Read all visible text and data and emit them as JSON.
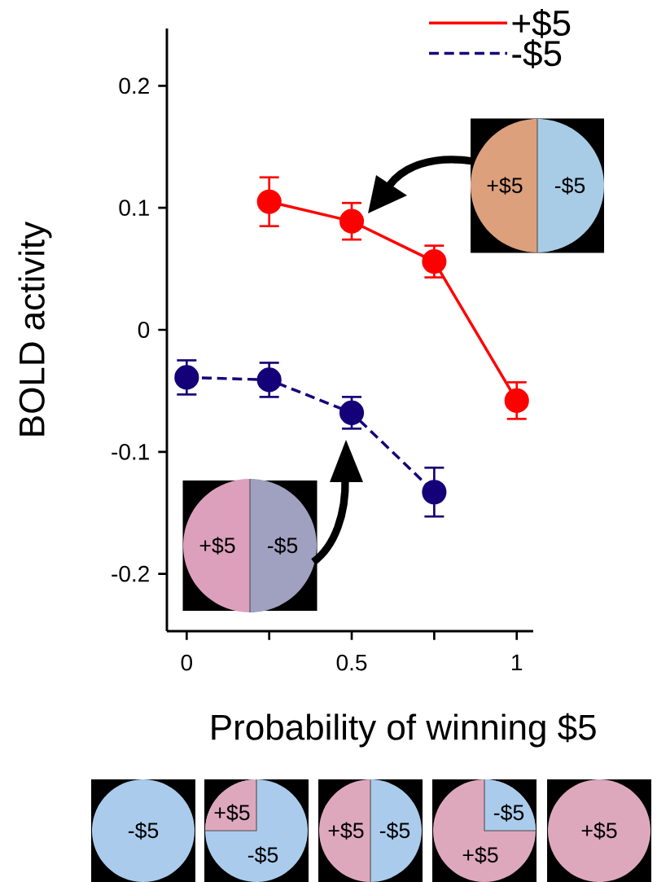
{
  "chart_data": {
    "type": "line",
    "xlabel": "Probability of winning $5",
    "ylabel": "BOLD activity",
    "series": [
      {
        "name": "+$5",
        "color": "#ff0000",
        "line_style": "solid",
        "x": [
          0.25,
          0.5,
          0.75,
          1
        ],
        "values": [
          0.105,
          0.089,
          0.056,
          -0.058
        ],
        "errors": [
          0.02,
          0.015,
          0.013,
          0.015
        ]
      },
      {
        "name": "-$5",
        "color": "#140078",
        "line_style": "dashed",
        "x": [
          0,
          0.25,
          0.5,
          0.75
        ],
        "values": [
          -0.039,
          -0.041,
          -0.068,
          -0.133
        ],
        "errors": [
          0.014,
          0.014,
          0.013,
          0.02
        ]
      }
    ],
    "xlim": [
      -0.06,
      1.05
    ],
    "ylim": [
      -0.247,
      0.247
    ],
    "xticks": [
      0,
      {
        "value": 0.25,
        "label": null
      },
      0.5,
      {
        "value": 0.75,
        "label": null
      },
      1
    ],
    "yticks": [
      -0.2,
      -0.1,
      0,
      0.1,
      0.2
    ],
    "legend": "top right",
    "marker": "circle",
    "annotations": [
      "+$5",
      "-$5",
      "+$5",
      "-$5",
      "-$5",
      "+$5",
      "-$5",
      "+$5",
      "-$5",
      "-$5",
      "+$5",
      "+$5"
    ]
  }
}
